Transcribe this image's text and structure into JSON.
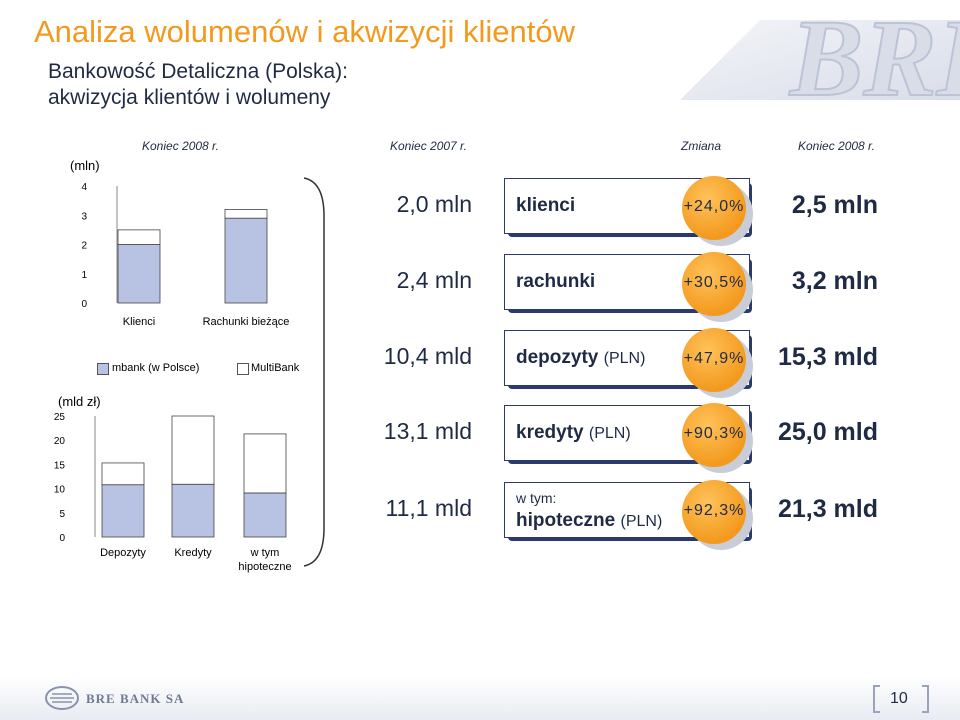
{
  "header": {
    "title": "Analiza wolumenów i akwizycji klientów",
    "subtitle_line1": "Bankowość Detaliczna (Polska):",
    "subtitle_line2": "akwizycja klientów i wolumeny"
  },
  "columns": {
    "chart_period": "Koniec 2008 r.",
    "start": "Koniec 2007 r.",
    "change": "Zmiana",
    "end": "Koniec 2008 r."
  },
  "metrics": [
    {
      "start": "2,0 mln",
      "prefix": "",
      "label": "klienci",
      "unit": "",
      "change": "+24,0%",
      "end": "2,5 mln"
    },
    {
      "start": "2,4 mln",
      "prefix": "",
      "label": "rachunki",
      "unit": "",
      "change": "+30,5%",
      "end": "3,2 mln"
    },
    {
      "start": "10,4 mld",
      "prefix": "",
      "label": "depozyty",
      "unit": "(PLN)",
      "change": "+47,9%",
      "end": "15,3 mld"
    },
    {
      "start": "13,1 mld",
      "prefix": "",
      "label": "kredyty",
      "unit": "(PLN)",
      "change": "+90,3%",
      "end": "25,0 mld"
    },
    {
      "start": "11,1 mld",
      "prefix": "w tym:",
      "label": "hipoteczne",
      "unit": "(PLN)",
      "change": "+92,3%",
      "end": "21,3 mld"
    }
  ],
  "colors": {
    "title": "#f39a1e",
    "navy": "#2b3a6b",
    "orange_badge": "#f6a12a",
    "bar_fill": "#b8c3e4",
    "bar_empty": "#ffffff"
  },
  "footer": {
    "brand": "BRE BANK SA",
    "page": "10"
  },
  "chart_data": [
    {
      "type": "bar",
      "stacked": true,
      "ylabel": "(mln)",
      "ylim": [
        0,
        4
      ],
      "yticks": [
        "0",
        "1",
        "2",
        "3",
        "4"
      ],
      "categories": [
        "Klienci",
        "Rachunki bieżące"
      ],
      "series": [
        {
          "name": "mbank (w Polsce)",
          "values": [
            2.0,
            2.9
          ]
        },
        {
          "name": "MultiBank",
          "values": [
            0.5,
            0.3
          ]
        }
      ],
      "legend": "top"
    },
    {
      "type": "bar",
      "stacked": true,
      "ylabel": "(mld zł)",
      "ylim": [
        0,
        25
      ],
      "yticks": [
        "0",
        "5",
        "10",
        "15",
        "20",
        "25"
      ],
      "categories": [
        "Depozyty",
        "Kredyty",
        "w tym hipoteczne"
      ],
      "series": [
        {
          "name": "mbank (w Polsce)",
          "values": [
            10.8,
            10.9,
            9.1
          ]
        },
        {
          "name": "MultiBank",
          "values": [
            4.5,
            14.1,
            12.2
          ]
        }
      ]
    }
  ]
}
